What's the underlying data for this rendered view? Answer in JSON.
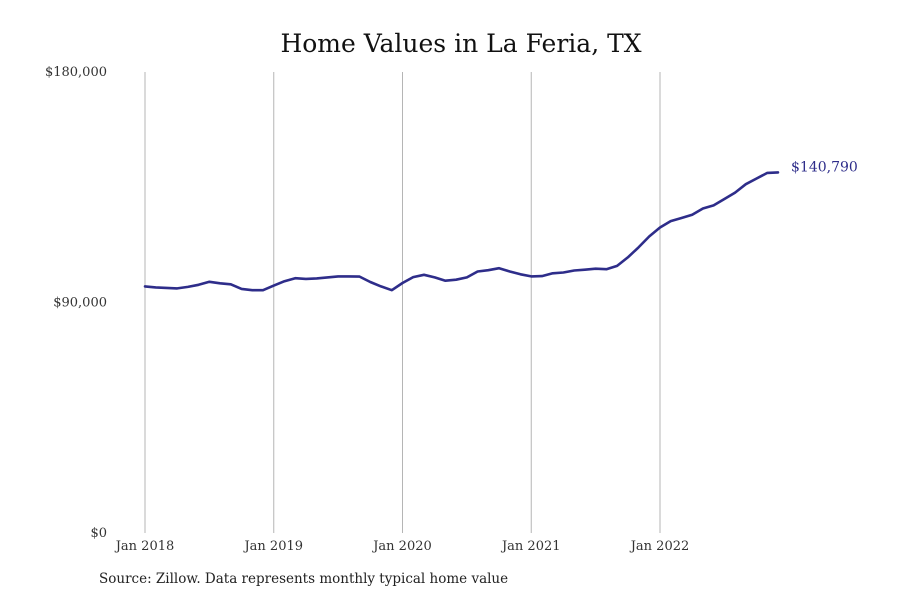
{
  "chart_data": {
    "type": "line",
    "title": "Home Values in La Feria, TX",
    "xlabel": "",
    "ylabel": "",
    "ylim": [
      0,
      180000
    ],
    "y_ticks": [
      {
        "value": 0,
        "label": "$0"
      },
      {
        "value": 90000,
        "label": "$90,000"
      },
      {
        "value": 180000,
        "label": "$180,000"
      }
    ],
    "x_ticks": [
      {
        "value": "2018-01",
        "label": "Jan 2018"
      },
      {
        "value": "2019-01",
        "label": "Jan 2019"
      },
      {
        "value": "2020-01",
        "label": "Jan 2020"
      },
      {
        "value": "2021-01",
        "label": "Jan 2021"
      },
      {
        "value": "2022-01",
        "label": "Jan 2022"
      }
    ],
    "grid": "vertical",
    "line_color": "#2e2d8a",
    "end_label": "$140,790",
    "series": [
      {
        "x": [
          "2018-01",
          "2018-02",
          "2018-03",
          "2018-04",
          "2018-05",
          "2018-06",
          "2018-07",
          "2018-08",
          "2018-09",
          "2018-10",
          "2018-11",
          "2018-12",
          "2019-01",
          "2019-02",
          "2019-03",
          "2019-04",
          "2019-05",
          "2019-06",
          "2019-07",
          "2019-08",
          "2019-09",
          "2019-10",
          "2019-11",
          "2019-12",
          "2020-01",
          "2020-02",
          "2020-03",
          "2020-04",
          "2020-05",
          "2020-06",
          "2020-07",
          "2020-08",
          "2020-09",
          "2020-10",
          "2020-11",
          "2020-12",
          "2021-01",
          "2021-02",
          "2021-03",
          "2021-04",
          "2021-05",
          "2021-06",
          "2021-07",
          "2021-08",
          "2021-09",
          "2021-10",
          "2021-11",
          "2021-12",
          "2022-01",
          "2022-02",
          "2022-03",
          "2022-04",
          "2022-05",
          "2022-06",
          "2022-07",
          "2022-08",
          "2022-09",
          "2022-10",
          "2022-11",
          "2022-12"
        ],
        "values": [
          96300,
          95900,
          95700,
          95500,
          96100,
          96900,
          98100,
          97500,
          97100,
          95300,
          94800,
          94800,
          96600,
          98300,
          99500,
          99200,
          99400,
          99800,
          100200,
          100200,
          100100,
          98000,
          96300,
          94800,
          97600,
          99900,
          100800,
          99800,
          98500,
          98900,
          99800,
          102100,
          102600,
          103400,
          102100,
          101000,
          100200,
          100300,
          101400,
          101700,
          102500,
          102800,
          103200,
          103000,
          104300,
          107600,
          111500,
          115800,
          119300,
          121800,
          123000,
          124300,
          126700,
          127900,
          130400,
          132900,
          136200,
          138400,
          140600,
          140790
        ]
      }
    ]
  },
  "source_note": "Source: Zillow. Data represents monthly typical home value"
}
